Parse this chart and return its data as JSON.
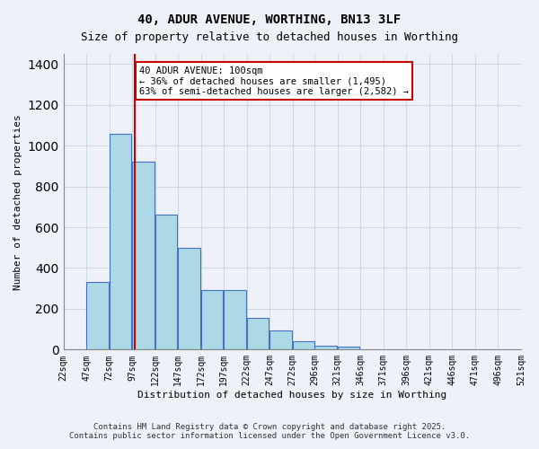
{
  "title1": "40, ADUR AVENUE, WORTHING, BN13 3LF",
  "title2": "Size of property relative to detached houses in Worthing",
  "xlabel": "Distribution of detached houses by size in Worthing",
  "ylabel": "Number of detached properties",
  "bins": [
    22,
    47,
    72,
    97,
    122,
    147,
    172,
    197,
    222,
    247,
    272,
    296,
    321,
    346,
    371,
    396,
    421,
    446,
    471,
    496,
    521
  ],
  "values": [
    0,
    330,
    1060,
    920,
    660,
    500,
    290,
    290,
    155,
    95,
    40,
    20,
    15,
    0,
    0,
    0,
    0,
    0,
    0,
    0
  ],
  "bar_color": "#add8e6",
  "bar_edge_color": "#4472c4",
  "property_sqm": 100,
  "annotation_text": "40 ADUR AVENUE: 100sqm\n← 36% of detached houses are smaller (1,495)\n63% of semi-detached houses are larger (2,582) →",
  "annotation_box_color": "#ffffff",
  "annotation_border_color": "#cc0000",
  "vline_color": "#cc0000",
  "grid_color": "#d0d8e8",
  "bg_color": "#eef2f8",
  "footer1": "Contains HM Land Registry data © Crown copyright and database right 2025.",
  "footer2": "Contains public sector information licensed under the Open Government Licence v3.0.",
  "ylim": [
    0,
    1450
  ],
  "yticks": [
    0,
    200,
    400,
    600,
    800,
    1000,
    1200,
    1400
  ]
}
